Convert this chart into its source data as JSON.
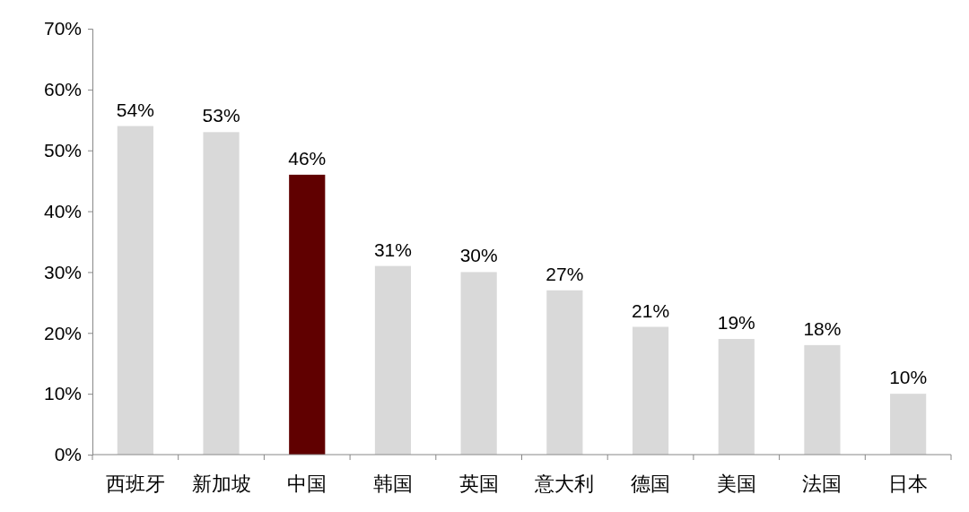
{
  "chart_data": {
    "type": "bar",
    "categories": [
      "西班牙",
      "新加坡",
      "中国",
      "韩国",
      "英国",
      "意大利",
      "德国",
      "美国",
      "法国",
      "日本"
    ],
    "values": [
      54,
      53,
      46,
      31,
      30,
      27,
      21,
      19,
      18,
      10
    ],
    "colors": [
      "#d9d9d9",
      "#d9d9d9",
      "#600000",
      "#d9d9d9",
      "#d9d9d9",
      "#d9d9d9",
      "#d9d9d9",
      "#d9d9d9",
      "#d9d9d9",
      "#d9d9d9"
    ],
    "value_labels": [
      "54%",
      "53%",
      "46%",
      "31%",
      "30%",
      "27%",
      "21%",
      "19%",
      "18%",
      "10%"
    ],
    "ylim": [
      0,
      70
    ],
    "yticks": [
      {
        "value": 0,
        "label": "0%"
      },
      {
        "value": 10,
        "label": "10%"
      },
      {
        "value": 20,
        "label": "20%"
      },
      {
        "value": 30,
        "label": "30%"
      },
      {
        "value": 40,
        "label": "40%"
      },
      {
        "value": 50,
        "label": "50%"
      },
      {
        "value": 60,
        "label": "60%"
      },
      {
        "value": 70,
        "label": "70%"
      }
    ],
    "grid": false
  }
}
